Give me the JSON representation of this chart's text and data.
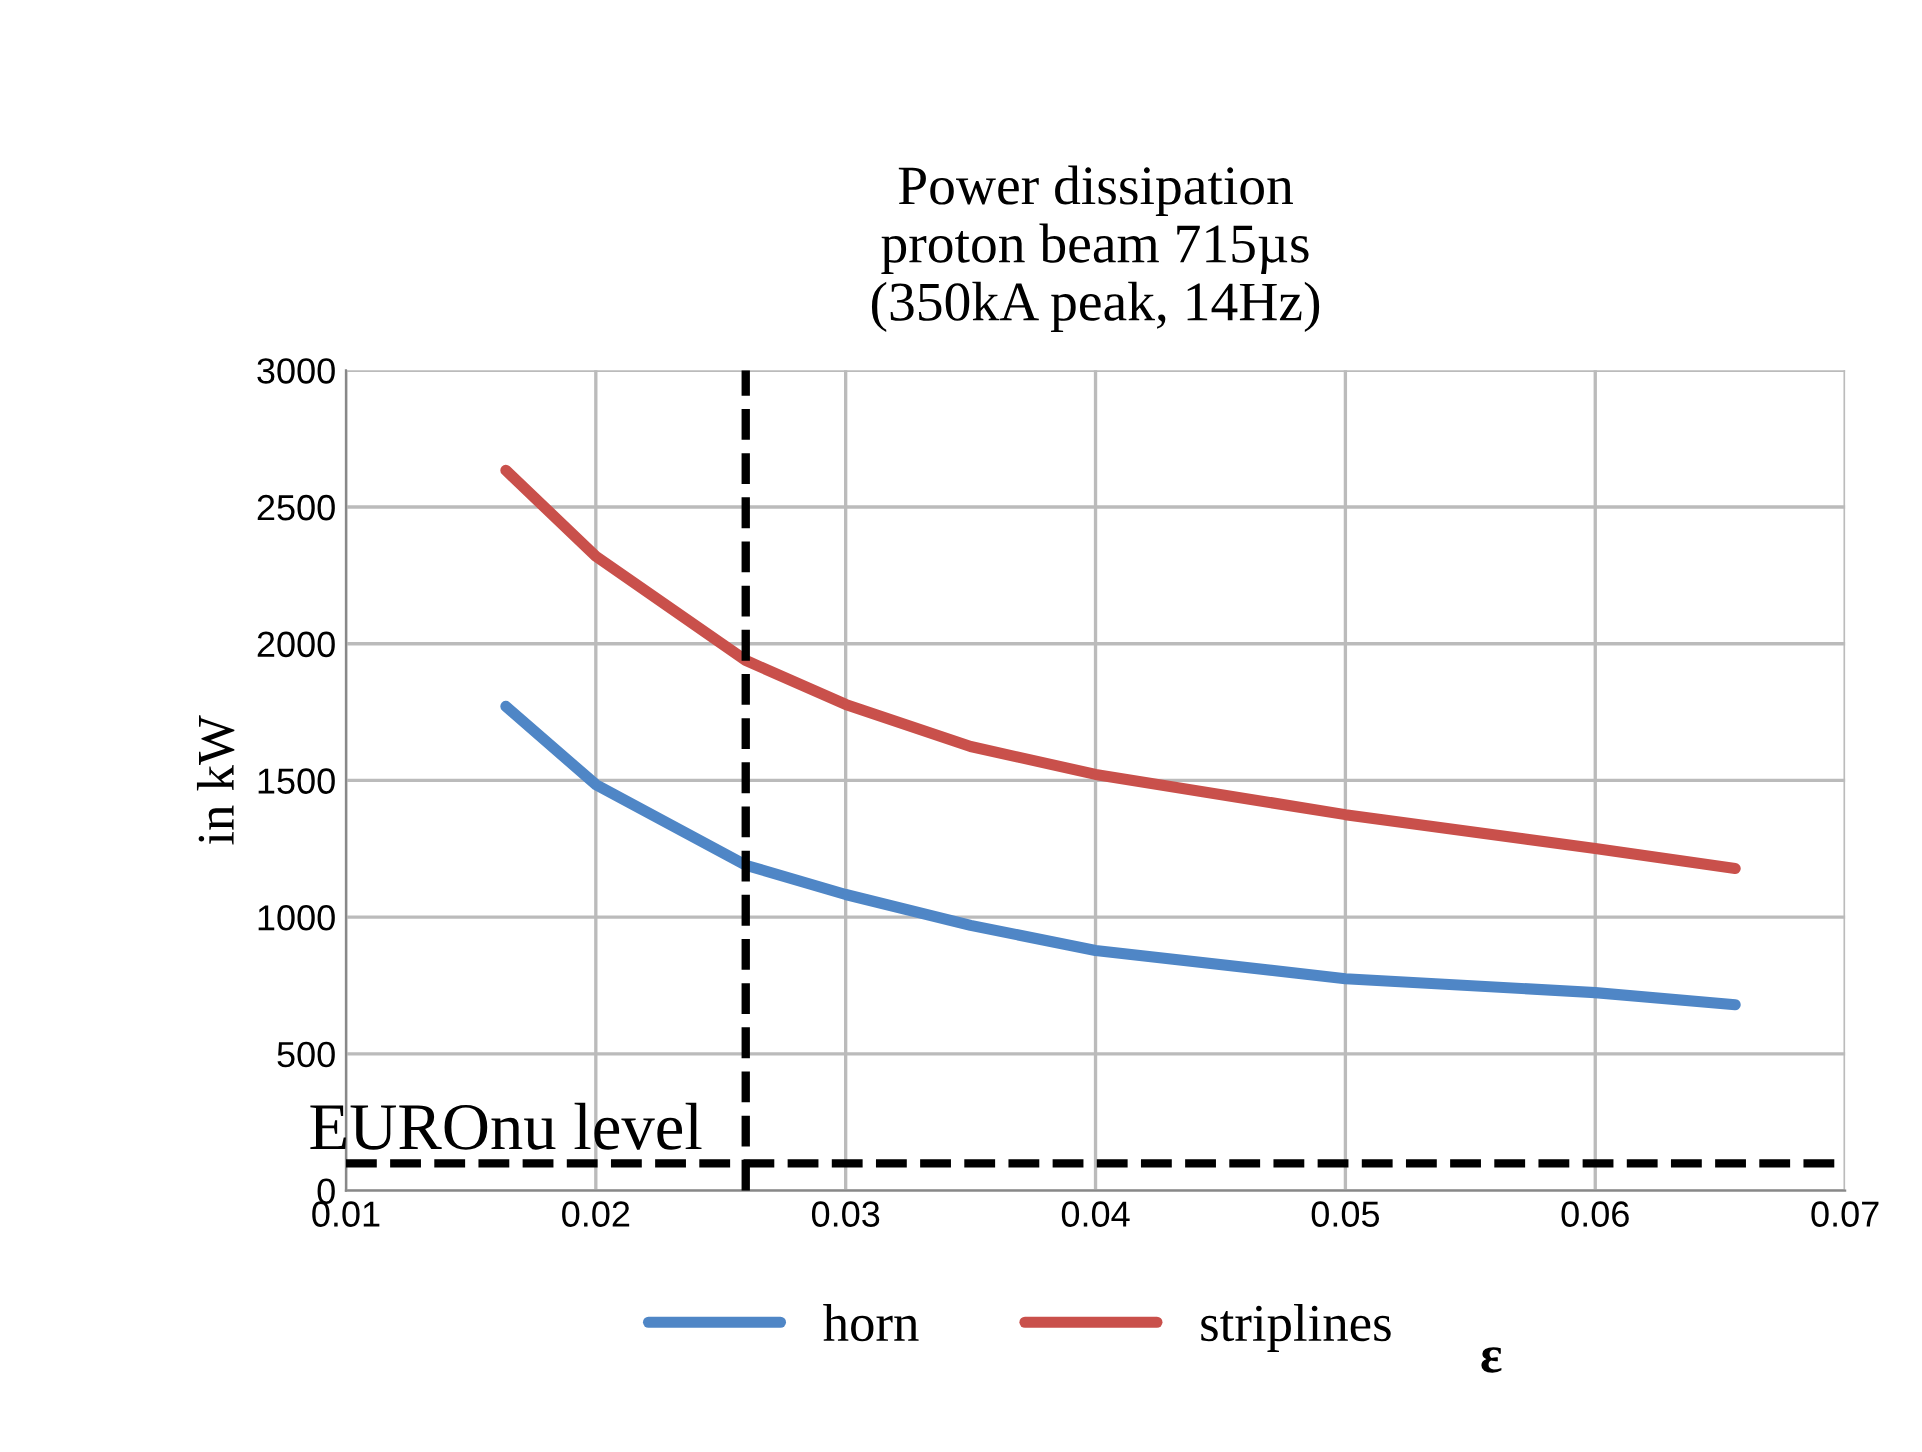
{
  "chart_data": {
    "type": "line",
    "title": "Power dissipation\nproton beam 715µs\n(350kA peak, 14Hz)",
    "xlabel": "ε",
    "ylabel": "in kW",
    "xlim": [
      0.01,
      0.07
    ],
    "xticks": [
      0.01,
      0.02,
      0.03,
      0.04,
      0.05,
      0.06,
      0.07
    ],
    "ylim": [
      0,
      3000
    ],
    "yticks": [
      0,
      500,
      1000,
      1500,
      2000,
      2500,
      3000
    ],
    "grid": true,
    "legend": "bottom",
    "marker": "none",
    "line_style": "solid",
    "x": [
      0.0164,
      0.02,
      0.026,
      0.03,
      0.035,
      0.04,
      0.05,
      0.06,
      0.0656
    ],
    "series": [
      {
        "name": "horn",
        "color": "#4f86c6",
        "values": [
          1771,
          1485,
          1190,
          1083,
          970,
          878,
          775,
          724,
          680
        ]
      },
      {
        "name": "striplines",
        "color": "#c9504b",
        "values": [
          2634,
          2320,
          1939,
          1778,
          1624,
          1522,
          1375,
          1251,
          1178
        ]
      }
    ],
    "ref_lines": [
      {
        "axis": "y",
        "value": 100,
        "label": "EUROnu level",
        "color": "#000000",
        "line_style": "dashed"
      },
      {
        "axis": "x",
        "value": 0.026,
        "label": null,
        "color": "#000000",
        "line_style": "dashed"
      }
    ]
  }
}
